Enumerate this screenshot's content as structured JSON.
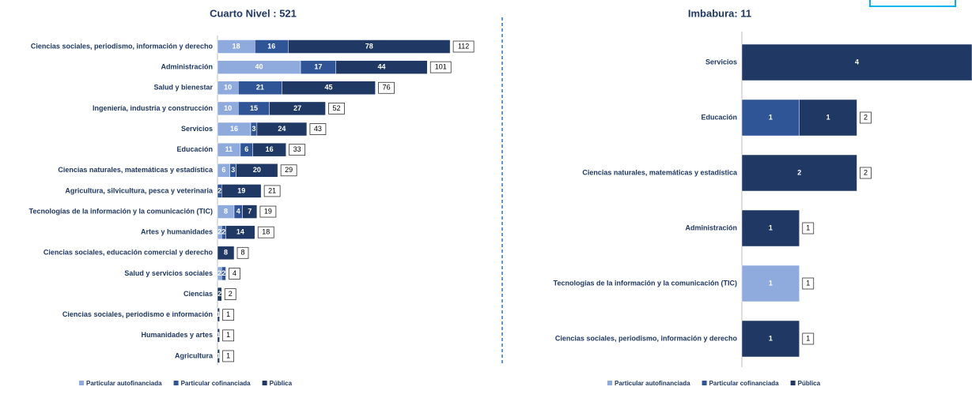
{
  "chart_data": [
    {
      "type": "bar",
      "orientation": "horizontal",
      "stacked": true,
      "title": "Cuarto Nivel : 521",
      "categories": [
        "Ciencias sociales, periodismo, información y derecho",
        "Administración",
        "Salud y bienestar",
        "Ingeniería, industria y construcción",
        "Servicios",
        "Educación",
        "Ciencias naturales, matemáticas y estadística",
        "Agricultura, silvicultura, pesca y veterinaria",
        "Tecnologías de la información y la comunicación (TIC)",
        "Artes y humanidades",
        "Ciencias sociales, educación comercial y derecho",
        "Salud y servicios sociales",
        "Ciencias",
        "Ciencias sociales, periodismo e información",
        "Humanidades y artes",
        "Agricultura"
      ],
      "series": [
        {
          "name": "Particular autofinanciada",
          "color": "#8faadc",
          "values": [
            18,
            40,
            10,
            10,
            16,
            11,
            6,
            0,
            8,
            2,
            0,
            2,
            0,
            0,
            0,
            0
          ]
        },
        {
          "name": "Particular cofinanciada",
          "color": "#2f5597",
          "values": [
            16,
            17,
            21,
            15,
            3,
            6,
            3,
            2,
            4,
            2,
            0,
            2,
            0,
            0,
            0,
            0
          ]
        },
        {
          "name": "Pública",
          "color": "#1f3864",
          "values": [
            78,
            44,
            45,
            27,
            24,
            16,
            20,
            19,
            7,
            14,
            8,
            0,
            2,
            1,
            1,
            1
          ]
        }
      ],
      "totals": [
        112,
        101,
        76,
        52,
        43,
        33,
        29,
        21,
        19,
        18,
        8,
        4,
        2,
        1,
        1,
        1
      ],
      "xlim": [
        0,
        115
      ]
    },
    {
      "type": "bar",
      "orientation": "horizontal",
      "stacked": true,
      "title": "Imbabura: 11",
      "categories": [
        "Servicios",
        "Educación",
        "Ciencias naturales, matemáticas y estadística",
        "Administración",
        "Tecnologías de la información y la comunicación (TIC)",
        "Ciencias sociales, periodismo, información y derecho"
      ],
      "series": [
        {
          "name": "Particular autofinanciada",
          "color": "#8faadc",
          "values": [
            0,
            0,
            0,
            0,
            1,
            0
          ]
        },
        {
          "name": "Particular cofinanciada",
          "color": "#2f5597",
          "values": [
            0,
            1,
            0,
            0,
            0,
            0
          ]
        },
        {
          "name": "Pública",
          "color": "#1f3864",
          "values": [
            4,
            1,
            2,
            1,
            0,
            1
          ]
        }
      ],
      "totals": [
        null,
        2,
        2,
        1,
        1,
        1
      ],
      "xlim": [
        0,
        4
      ]
    }
  ]
}
